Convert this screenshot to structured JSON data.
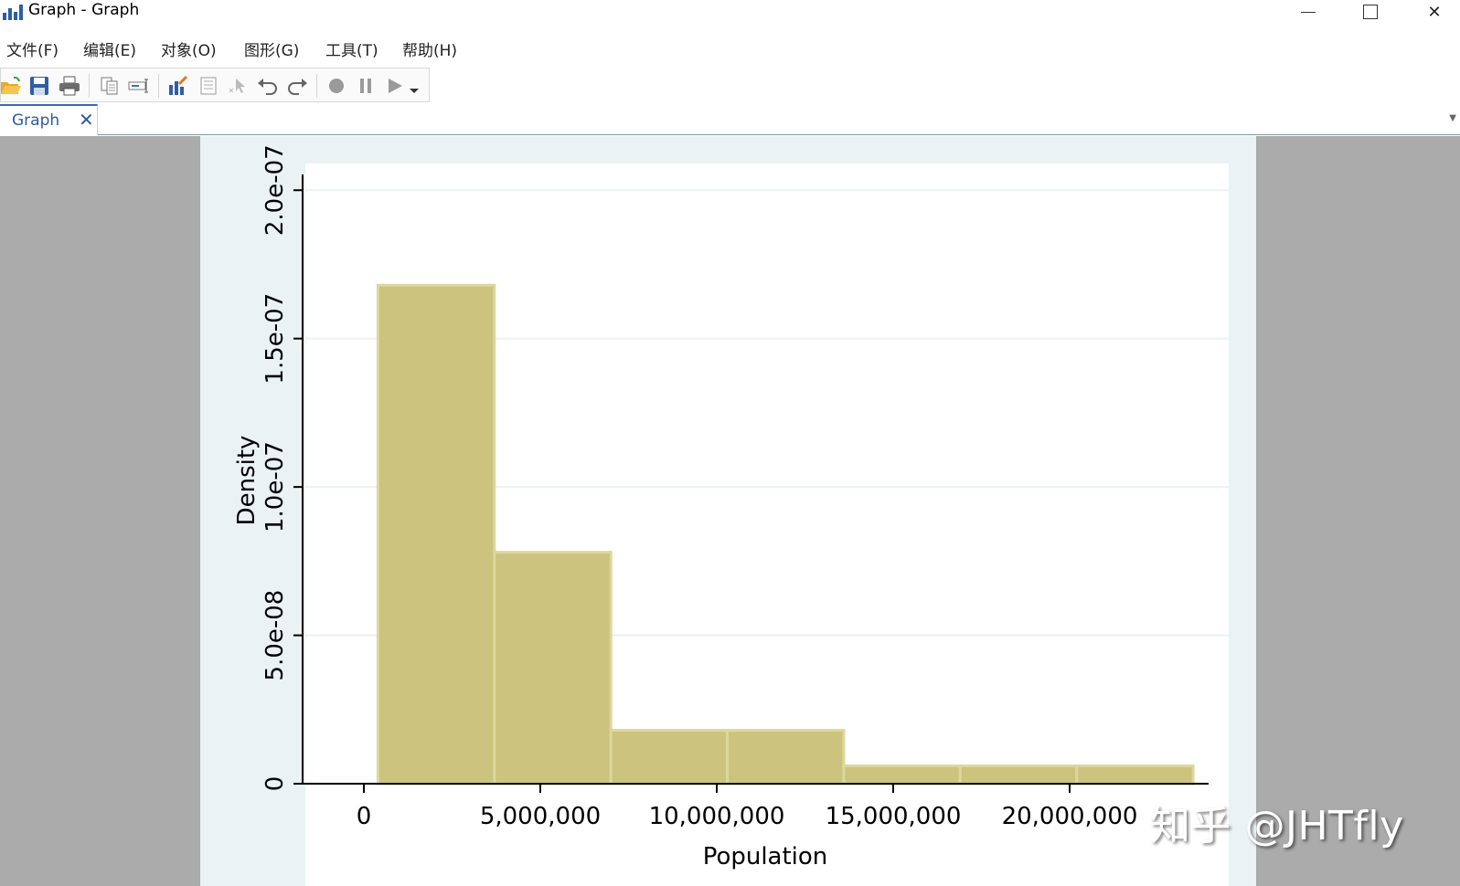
{
  "window": {
    "title": "Graph - Graph",
    "minimize_label": "",
    "maximize_label": "",
    "close_label": "✕"
  },
  "menu": [
    {
      "label": "文件(F)"
    },
    {
      "label": "编辑(E)"
    },
    {
      "label": "对象(O)"
    },
    {
      "label": "图形(G)"
    },
    {
      "label": "工具(T)"
    },
    {
      "label": "帮助(H)"
    }
  ],
  "toolbar": {
    "icons": [
      "open-icon",
      "save-icon",
      "print-icon",
      "copy-icon",
      "rename-icon",
      "graph-editor-icon",
      "properties-icon",
      "pointer-icon",
      "undo-icon",
      "redo-icon",
      "record-icon",
      "pause-icon",
      "play-icon",
      "dropdown-icon"
    ]
  },
  "tabs": [
    {
      "label": "Graph",
      "close": "✕",
      "active": true
    }
  ],
  "colors": {
    "bar_fill": "#cbc37e",
    "bar_stroke": "#ddd79e",
    "plot_bg": "#ffffff",
    "paper_bg": "#eaf2f3",
    "outer_bg": "#ababab"
  },
  "chart_data": {
    "type": "bar",
    "subtype": "histogram",
    "xlabel": "Population",
    "ylabel": "Density",
    "x_ticks": [
      0,
      5000000,
      10000000,
      15000000,
      20000000
    ],
    "x_tick_labels": [
      "0",
      "5,000,000",
      "10,000,000",
      "15,000,000",
      "20,000,000"
    ],
    "y_ticks": [
      0,
      5e-08,
      1e-07,
      1.5e-07,
      2e-07
    ],
    "y_tick_labels": [
      "0",
      "5.0e-08",
      "1.0e-07",
      "1.5e-07",
      "2.0e-07"
    ],
    "xlim": [
      -1800000,
      24500000
    ],
    "ylim": [
      0,
      2.05e-07
    ],
    "grid": true,
    "bins": [
      {
        "x0": 400000,
        "x1": 3700000,
        "density": 1.68e-07
      },
      {
        "x0": 3700000,
        "x1": 7000000,
        "density": 7.8e-08
      },
      {
        "x0": 7000000,
        "x1": 10300000,
        "density": 1.8e-08
      },
      {
        "x0": 10300000,
        "x1": 13600000,
        "density": 1.8e-08
      },
      {
        "x0": 13600000,
        "x1": 16900000,
        "density": 6e-09
      },
      {
        "x0": 16900000,
        "x1": 20200000,
        "density": 6e-09
      },
      {
        "x0": 20200000,
        "x1": 23500000,
        "density": 6e-09
      }
    ]
  },
  "watermark": "知乎 @JHTfly"
}
